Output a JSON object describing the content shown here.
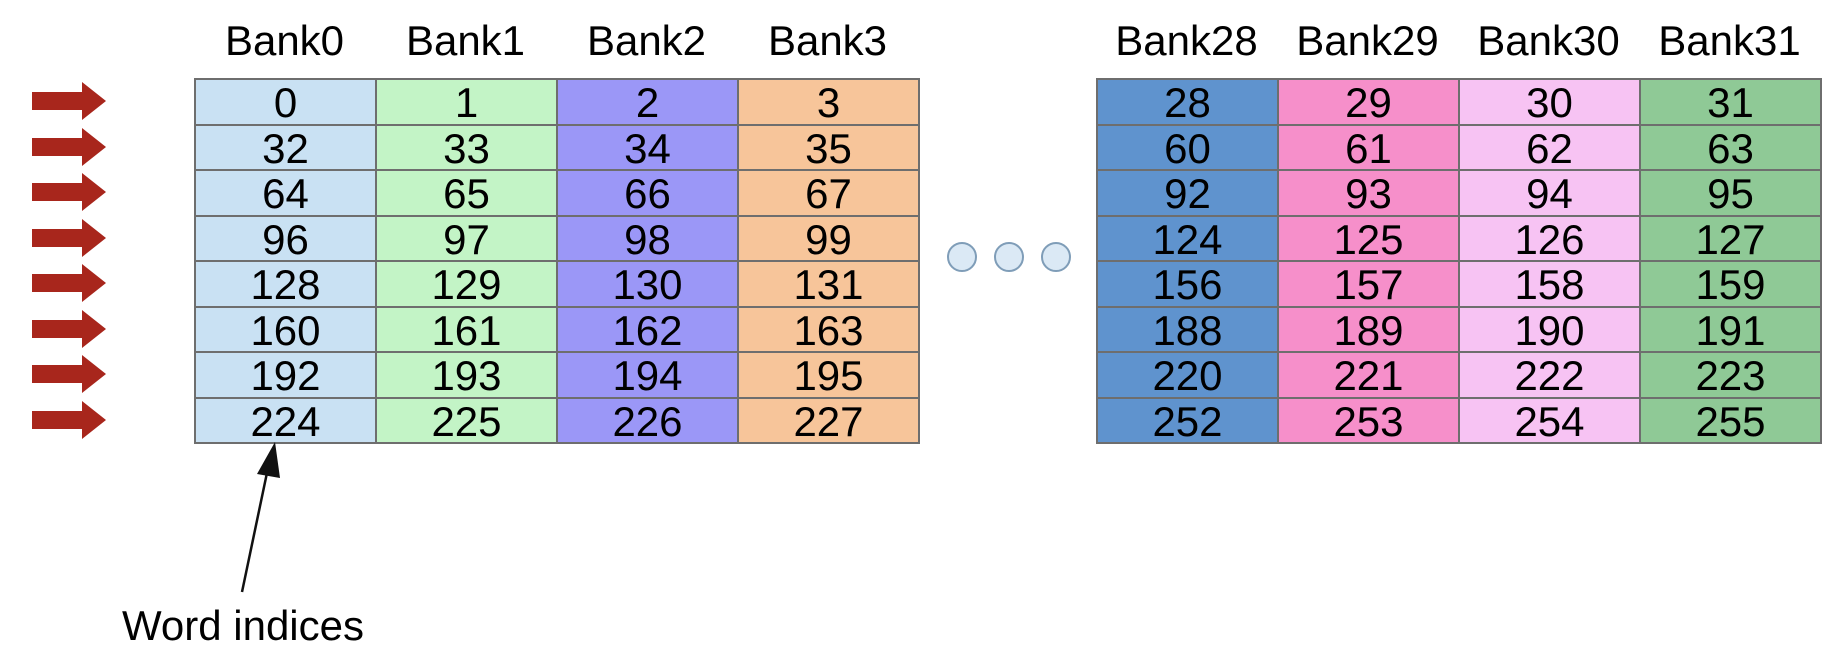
{
  "caption": "Word indices",
  "left_group": {
    "banks": [
      {
        "label": "Bank0",
        "color": "#c9e1f3",
        "words": [
          "0",
          "32",
          "64",
          "96",
          "128",
          "160",
          "192",
          "224"
        ]
      },
      {
        "label": "Bank1",
        "color": "#c3f4c6",
        "words": [
          "1",
          "33",
          "65",
          "97",
          "129",
          "161",
          "193",
          "225"
        ]
      },
      {
        "label": "Bank2",
        "color": "#9b97f7",
        "words": [
          "2",
          "34",
          "66",
          "98",
          "130",
          "162",
          "194",
          "226"
        ]
      },
      {
        "label": "Bank3",
        "color": "#f7c59a",
        "words": [
          "3",
          "35",
          "67",
          "99",
          "131",
          "163",
          "195",
          "227"
        ]
      }
    ]
  },
  "right_group": {
    "banks": [
      {
        "label": "Bank28",
        "color": "#5f93ce",
        "words": [
          "28",
          "60",
          "92",
          "124",
          "156",
          "188",
          "220",
          "252"
        ]
      },
      {
        "label": "Bank29",
        "color": "#f68fca",
        "words": [
          "29",
          "61",
          "93",
          "125",
          "157",
          "189",
          "221",
          "253"
        ]
      },
      {
        "label": "Bank30",
        "color": "#f7c3f3",
        "words": [
          "30",
          "62",
          "94",
          "126",
          "158",
          "190",
          "222",
          "254"
        ]
      },
      {
        "label": "Bank31",
        "color": "#8fc996",
        "words": [
          "31",
          "63",
          "95",
          "127",
          "159",
          "191",
          "223",
          "255"
        ]
      }
    ]
  },
  "ellipsis_dots": 3,
  "row_arrows": 8,
  "colors": {
    "arrow": "#a8261c",
    "grid": "#6e6e6e",
    "dot_fill": "#dbe9f5",
    "dot_stroke": "#7f9db8"
  }
}
